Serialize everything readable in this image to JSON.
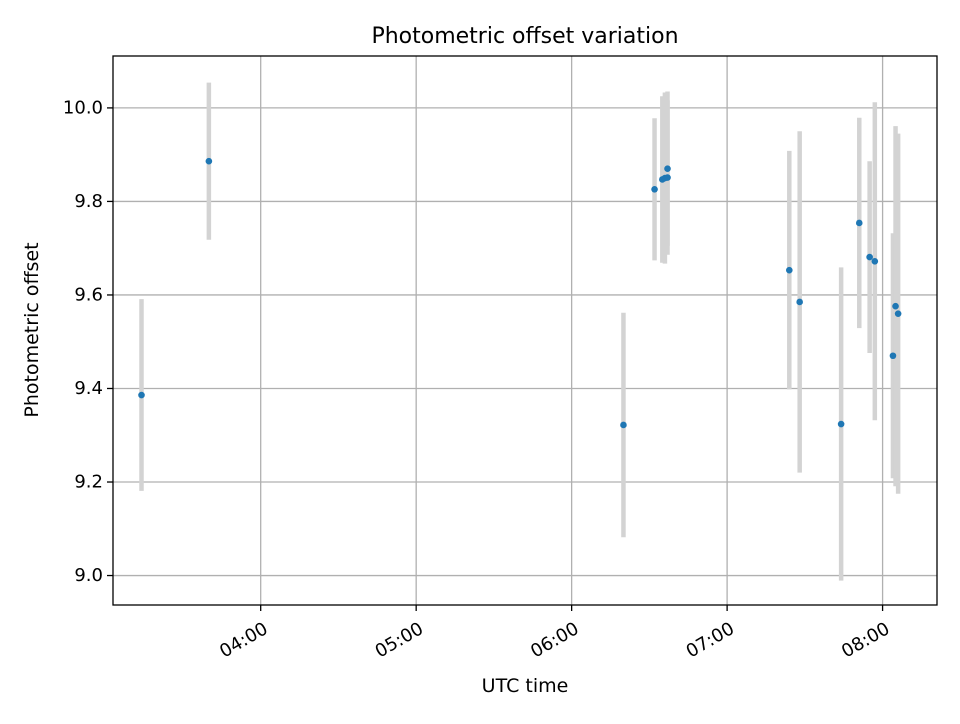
{
  "chart_data": {
    "type": "scatter",
    "title": "Photometric offset variation",
    "xlabel": "UTC time",
    "ylabel": "Photometric offset",
    "x_ticks": [
      "04:00",
      "05:00",
      "06:00",
      "07:00",
      "08:00"
    ],
    "y_ticks": [
      "9.0",
      "9.2",
      "9.4",
      "9.6",
      "9.8",
      "10.0"
    ],
    "xlim": [
      "03:03",
      "08:21"
    ],
    "ylim": [
      8.937,
      10.111
    ],
    "grid": true,
    "colors": {
      "marker": "#1f77b4",
      "errorbar": "#d3d3d3",
      "grid": "#b0b0b0"
    },
    "points": [
      {
        "x": "03:14",
        "y": 9.386,
        "err": 0.205
      },
      {
        "x": "03:40",
        "y": 9.886,
        "err": 0.168
      },
      {
        "x": "06:20",
        "y": 9.322,
        "err": 0.24
      },
      {
        "x": "06:32",
        "y": 9.826,
        "err": 0.152
      },
      {
        "x": "06:35",
        "y": 9.847,
        "err": 0.178
      },
      {
        "x": "06:36",
        "y": 9.85,
        "err": 0.183
      },
      {
        "x": "06:37",
        "y": 9.87,
        "err": 0.165
      },
      {
        "x": "06:37",
        "y": 9.851,
        "err": 0.165
      },
      {
        "x": "07:24",
        "y": 9.653,
        "err": 0.255
      },
      {
        "x": "07:28",
        "y": 9.585,
        "err": 0.365
      },
      {
        "x": "07:44",
        "y": 9.324,
        "err": 0.335
      },
      {
        "x": "07:51",
        "y": 9.754,
        "err": 0.225
      },
      {
        "x": "07:55",
        "y": 9.681,
        "err": 0.205
      },
      {
        "x": "07:57",
        "y": 9.672,
        "err": 0.34
      },
      {
        "x": "08:04",
        "y": 9.47,
        "err": 0.262
      },
      {
        "x": "08:05",
        "y": 9.576,
        "err": 0.385
      },
      {
        "x": "08:06",
        "y": 9.56,
        "err": 0.385
      }
    ]
  }
}
